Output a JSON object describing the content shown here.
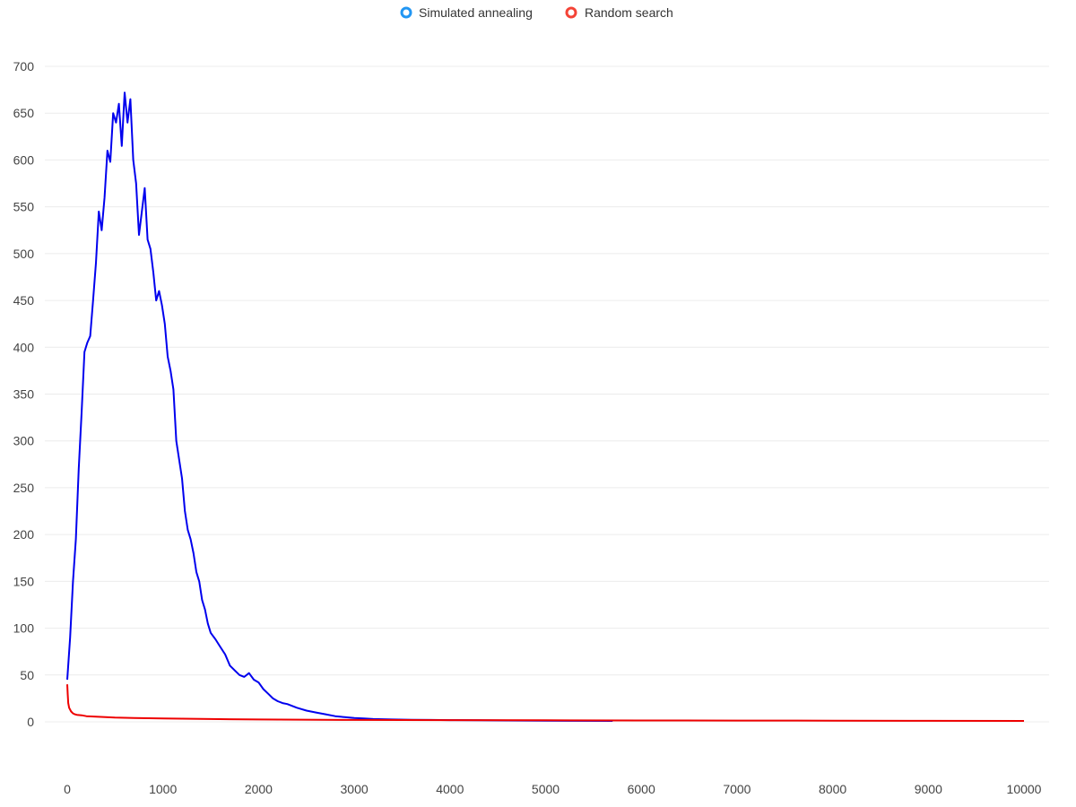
{
  "chart_data": {
    "type": "line",
    "title": "",
    "xlabel": "",
    "ylabel": "",
    "xlim": [
      0,
      10000
    ],
    "ylim": [
      0,
      700
    ],
    "x_ticks": [
      0,
      1000,
      2000,
      3000,
      4000,
      5000,
      6000,
      7000,
      8000,
      9000,
      10000
    ],
    "y_ticks": [
      0,
      50,
      100,
      150,
      200,
      250,
      300,
      350,
      400,
      450,
      500,
      550,
      600,
      650,
      700
    ],
    "grid": "horizontal",
    "legend_position": "top-center",
    "series": [
      {
        "name": "Simulated annealing",
        "legend_color": "#2196f3",
        "line_color": "#0000ee",
        "x": [
          0,
          30,
          60,
          90,
          120,
          150,
          180,
          210,
          240,
          270,
          300,
          330,
          360,
          390,
          420,
          450,
          480,
          510,
          540,
          570,
          600,
          630,
          660,
          690,
          720,
          750,
          780,
          810,
          840,
          870,
          900,
          930,
          960,
          990,
          1020,
          1050,
          1080,
          1110,
          1140,
          1170,
          1200,
          1230,
          1260,
          1290,
          1320,
          1350,
          1380,
          1410,
          1440,
          1470,
          1500,
          1550,
          1600,
          1650,
          1700,
          1750,
          1800,
          1850,
          1900,
          1950,
          2000,
          2050,
          2100,
          2150,
          2200,
          2250,
          2300,
          2400,
          2500,
          2600,
          2700,
          2800,
          2900,
          3000,
          3100,
          3200,
          3400,
          3600,
          3800,
          4000,
          4300,
          4600,
          5000,
          5300,
          5700
        ],
        "values": [
          45,
          90,
          150,
          195,
          270,
          330,
          395,
          405,
          412,
          450,
          490,
          545,
          525,
          560,
          610,
          598,
          650,
          640,
          660,
          615,
          672,
          640,
          665,
          600,
          575,
          520,
          545,
          570,
          515,
          505,
          480,
          450,
          460,
          445,
          425,
          390,
          375,
          355,
          300,
          280,
          260,
          225,
          205,
          195,
          180,
          160,
          150,
          130,
          120,
          105,
          95,
          88,
          80,
          72,
          60,
          55,
          50,
          48,
          52,
          45,
          42,
          35,
          30,
          25,
          22,
          20,
          19,
          15,
          12,
          10,
          8,
          6,
          5,
          4,
          3.5,
          3,
          2.5,
          2.2,
          2.0,
          1.8,
          1.6,
          1.4,
          1.2,
          1.1,
          1.0
        ]
      },
      {
        "name": "Random search",
        "legend_color": "#f44336",
        "line_color": "#ee0000",
        "x": [
          0,
          5,
          10,
          20,
          40,
          60,
          80,
          100,
          150,
          200,
          300,
          400,
          500,
          700,
          1000,
          1500,
          2000,
          3000,
          4000,
          5000,
          6000,
          7000,
          8000,
          9000,
          10000
        ],
        "values": [
          40,
          30,
          20,
          15,
          11,
          9,
          8,
          7.5,
          7,
          6,
          5.5,
          5,
          4.5,
          4,
          3.5,
          3,
          2.5,
          2,
          1.8,
          1.6,
          1.4,
          1.3,
          1.2,
          1.1,
          1.0
        ]
      }
    ]
  }
}
